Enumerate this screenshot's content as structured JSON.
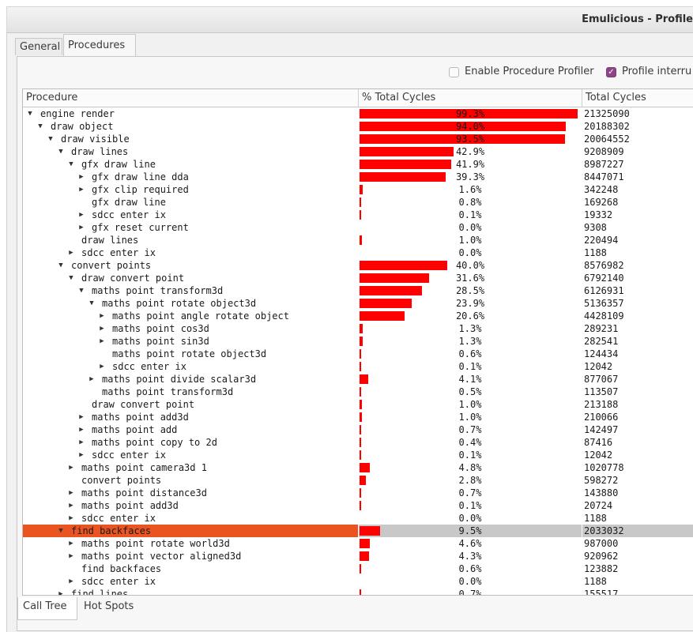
{
  "window": {
    "title": "Emulicious - Profile"
  },
  "tabs": [
    {
      "label": "General"
    },
    {
      "label": "Procedures"
    }
  ],
  "options": {
    "enable_procedure_profiler": {
      "label": "Enable Procedure Profiler",
      "checked": false
    },
    "profile_interrupts": {
      "label": "Profile interru",
      "checked": true
    }
  },
  "table": {
    "headers": {
      "procedure": "Procedure",
      "pct": "% Total Cycles",
      "cycles": "Total Cycles"
    },
    "rows": [
      {
        "depth": 0,
        "arrow": "down",
        "name": "engine render",
        "pct": "99.3%",
        "pct_value": 99.3,
        "cycles": "21325090"
      },
      {
        "depth": 1,
        "arrow": "down",
        "name": "draw object",
        "pct": "94.0%",
        "pct_value": 94.0,
        "cycles": "20188302"
      },
      {
        "depth": 2,
        "arrow": "down",
        "name": "draw visible",
        "pct": "93.5%",
        "pct_value": 93.5,
        "cycles": "20064552"
      },
      {
        "depth": 3,
        "arrow": "down",
        "name": "draw lines",
        "pct": "42.9%",
        "pct_value": 42.9,
        "cycles": "9208909"
      },
      {
        "depth": 4,
        "arrow": "down",
        "name": "gfx draw line",
        "pct": "41.9%",
        "pct_value": 41.9,
        "cycles": "8987227"
      },
      {
        "depth": 5,
        "arrow": "right",
        "name": "gfx draw line dda",
        "pct": "39.3%",
        "pct_value": 39.3,
        "cycles": "8447071"
      },
      {
        "depth": 5,
        "arrow": "right",
        "name": "gfx clip required",
        "pct": "1.6%",
        "pct_value": 1.6,
        "cycles": "342248"
      },
      {
        "depth": 5,
        "arrow": "none",
        "name": "gfx draw line",
        "pct": "0.8%",
        "pct_value": 0.8,
        "cycles": "169268"
      },
      {
        "depth": 5,
        "arrow": "right",
        "name": "sdcc enter ix",
        "pct": "0.1%",
        "pct_value": 0.1,
        "cycles": "19332"
      },
      {
        "depth": 5,
        "arrow": "right",
        "name": "gfx reset current",
        "pct": "0.0%",
        "pct_value": 0.0,
        "cycles": "9308"
      },
      {
        "depth": 4,
        "arrow": "none",
        "name": "draw lines",
        "pct": "1.0%",
        "pct_value": 1.0,
        "cycles": "220494"
      },
      {
        "depth": 4,
        "arrow": "right",
        "name": "sdcc enter ix",
        "pct": "0.0%",
        "pct_value": 0.0,
        "cycles": "1188"
      },
      {
        "depth": 3,
        "arrow": "down",
        "name": "convert points",
        "pct": "40.0%",
        "pct_value": 40.0,
        "cycles": "8576982"
      },
      {
        "depth": 4,
        "arrow": "down",
        "name": "draw convert point",
        "pct": "31.6%",
        "pct_value": 31.6,
        "cycles": "6792140"
      },
      {
        "depth": 5,
        "arrow": "down",
        "name": "maths point transform3d",
        "pct": "28.5%",
        "pct_value": 28.5,
        "cycles": "6126931"
      },
      {
        "depth": 6,
        "arrow": "down",
        "name": "maths point rotate object3d",
        "pct": "23.9%",
        "pct_value": 23.9,
        "cycles": "5136357"
      },
      {
        "depth": 7,
        "arrow": "right",
        "name": "maths point angle rotate object",
        "pct": "20.6%",
        "pct_value": 20.6,
        "cycles": "4428109"
      },
      {
        "depth": 7,
        "arrow": "right",
        "name": "maths point cos3d",
        "pct": "1.3%",
        "pct_value": 1.3,
        "cycles": "289231"
      },
      {
        "depth": 7,
        "arrow": "right",
        "name": "maths point sin3d",
        "pct": "1.3%",
        "pct_value": 1.3,
        "cycles": "282541"
      },
      {
        "depth": 7,
        "arrow": "none",
        "name": "maths point rotate object3d",
        "pct": "0.6%",
        "pct_value": 0.6,
        "cycles": "124434"
      },
      {
        "depth": 7,
        "arrow": "right",
        "name": "sdcc enter ix",
        "pct": "0.1%",
        "pct_value": 0.1,
        "cycles": "12042"
      },
      {
        "depth": 6,
        "arrow": "right",
        "name": "maths point divide scalar3d",
        "pct": "4.1%",
        "pct_value": 4.1,
        "cycles": "877067"
      },
      {
        "depth": 6,
        "arrow": "none",
        "name": "maths point transform3d",
        "pct": "0.5%",
        "pct_value": 0.5,
        "cycles": "113507"
      },
      {
        "depth": 5,
        "arrow": "none",
        "name": "draw convert point",
        "pct": "1.0%",
        "pct_value": 1.0,
        "cycles": "213188"
      },
      {
        "depth": 5,
        "arrow": "right",
        "name": "maths point add3d",
        "pct": "1.0%",
        "pct_value": 1.0,
        "cycles": "210066"
      },
      {
        "depth": 5,
        "arrow": "right",
        "name": "maths point add",
        "pct": "0.7%",
        "pct_value": 0.7,
        "cycles": "142497"
      },
      {
        "depth": 5,
        "arrow": "right",
        "name": "maths point copy to 2d",
        "pct": "0.4%",
        "pct_value": 0.4,
        "cycles": "87416"
      },
      {
        "depth": 5,
        "arrow": "right",
        "name": "sdcc enter ix",
        "pct": "0.1%",
        "pct_value": 0.1,
        "cycles": "12042"
      },
      {
        "depth": 4,
        "arrow": "right",
        "name": "maths point camera3d 1",
        "pct": "4.8%",
        "pct_value": 4.8,
        "cycles": "1020778"
      },
      {
        "depth": 4,
        "arrow": "none",
        "name": "convert points",
        "pct": "2.8%",
        "pct_value": 2.8,
        "cycles": "598272"
      },
      {
        "depth": 4,
        "arrow": "right",
        "name": "maths point distance3d",
        "pct": "0.7%",
        "pct_value": 0.7,
        "cycles": "143880"
      },
      {
        "depth": 4,
        "arrow": "right",
        "name": "maths point add3d",
        "pct": "0.1%",
        "pct_value": 0.1,
        "cycles": "20724"
      },
      {
        "depth": 4,
        "arrow": "right",
        "name": "sdcc enter ix",
        "pct": "0.0%",
        "pct_value": 0.0,
        "cycles": "1188"
      },
      {
        "depth": 3,
        "arrow": "down",
        "name": "find backfaces",
        "pct": "9.5%",
        "pct_value": 9.5,
        "cycles": "2033032",
        "selected": true
      },
      {
        "depth": 4,
        "arrow": "right",
        "name": "maths point rotate world3d",
        "pct": "4.6%",
        "pct_value": 4.6,
        "cycles": "987000"
      },
      {
        "depth": 4,
        "arrow": "right",
        "name": "maths point vector aligned3d",
        "pct": "4.3%",
        "pct_value": 4.3,
        "cycles": "920962"
      },
      {
        "depth": 4,
        "arrow": "none",
        "name": "find backfaces",
        "pct": "0.6%",
        "pct_value": 0.6,
        "cycles": "123882"
      },
      {
        "depth": 4,
        "arrow": "right",
        "name": "sdcc enter ix",
        "pct": "0.0%",
        "pct_value": 0.0,
        "cycles": "1188"
      },
      {
        "depth": 3,
        "arrow": "right",
        "name": "find lines",
        "pct": "0.7%",
        "pct_value": 0.7,
        "cycles": "155517"
      }
    ]
  },
  "bottom_tabs": [
    {
      "label": "Call Tree"
    },
    {
      "label": "Hot Spots"
    }
  ],
  "colors": {
    "bar": "#ff0000",
    "selection": "#e95420",
    "checkbox_on": "#8e4585"
  }
}
